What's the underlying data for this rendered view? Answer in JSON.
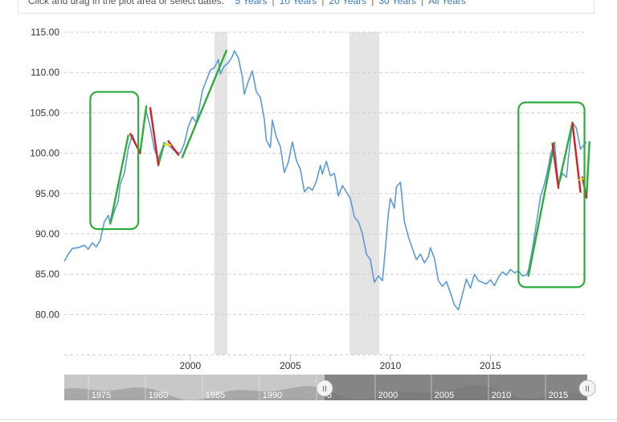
{
  "toolbar": {
    "hint": "Click and drag in the plot area or select dates:",
    "ranges": [
      "5 Years",
      "10 Years",
      "20 Years",
      "30 Years",
      "All Years"
    ]
  },
  "colors": {
    "line": "#5b9bd5",
    "grid": "#cfcfcf",
    "recession": "#e4e4e4",
    "up_trend": "#2eac3e",
    "down_trend": "#d42020",
    "flat_trend": "#d8e02a",
    "box": "#2eac3e",
    "navigator_bg": "#c8c8c8",
    "navigator_fill": "#a8a8a8",
    "navigator_selected": "#6f6f6f"
  },
  "chart_data": {
    "type": "line",
    "title": "",
    "xlabel": "",
    "ylabel": "",
    "yticks": [
      "115.00",
      "110.00",
      "105.00",
      "100.00",
      "95.00",
      "90.00",
      "85.00",
      "80.00"
    ],
    "xticks": [
      "2000",
      "2005",
      "2010",
      "2015"
    ],
    "ylim": [
      75,
      115
    ],
    "xlim": [
      1993.7,
      2019.8
    ],
    "grid": true,
    "recession_bands": [
      [
        2001.2,
        2001.85
      ],
      [
        2007.95,
        2009.45
      ]
    ],
    "series": [
      {
        "name": "",
        "points": [
          [
            1993.7,
            86.6
          ],
          [
            1993.9,
            87.5
          ],
          [
            1994.1,
            88.2
          ],
          [
            1994.4,
            88.3
          ],
          [
            1994.7,
            88.6
          ],
          [
            1994.9,
            88.1
          ],
          [
            1995.1,
            88.9
          ],
          [
            1995.3,
            88.4
          ],
          [
            1995.5,
            89.2
          ],
          [
            1995.7,
            91.5
          ],
          [
            1995.9,
            92.3
          ],
          [
            1996.0,
            91.2
          ],
          [
            1996.2,
            92.8
          ],
          [
            1996.4,
            94.1
          ],
          [
            1996.5,
            96.2
          ],
          [
            1996.7,
            97.5
          ],
          [
            1996.9,
            100.6
          ],
          [
            1997.1,
            102.3
          ],
          [
            1997.3,
            101.0
          ],
          [
            1997.5,
            100.2
          ],
          [
            1997.7,
            104.2
          ],
          [
            1997.8,
            105.2
          ],
          [
            1998.0,
            103.2
          ],
          [
            1998.2,
            100.5
          ],
          [
            1998.4,
            99.3
          ],
          [
            1998.6,
            100.6
          ],
          [
            1998.8,
            101.2
          ],
          [
            1999.0,
            100.8
          ],
          [
            1999.2,
            100.3
          ],
          [
            1999.5,
            100.0
          ],
          [
            1999.7,
            101.2
          ],
          [
            1999.9,
            103.3
          ],
          [
            2000.1,
            104.5
          ],
          [
            2000.3,
            103.8
          ],
          [
            2000.5,
            106.3
          ],
          [
            2000.6,
            107.7
          ],
          [
            2000.8,
            109.0
          ],
          [
            2001.0,
            110.3
          ],
          [
            2001.2,
            110.6
          ],
          [
            2001.4,
            111.6
          ],
          [
            2001.5,
            109.8
          ],
          [
            2001.7,
            110.8
          ],
          [
            2001.9,
            111.2
          ],
          [
            2002.1,
            112.0
          ],
          [
            2002.2,
            112.7
          ],
          [
            2002.4,
            111.8
          ],
          [
            2002.6,
            109.5
          ],
          [
            2002.7,
            107.3
          ],
          [
            2002.9,
            108.9
          ],
          [
            2003.1,
            110.2
          ],
          [
            2003.3,
            107.6
          ],
          [
            2003.5,
            106.9
          ],
          [
            2003.7,
            104.2
          ],
          [
            2003.8,
            101.6
          ],
          [
            2004.0,
            100.7
          ],
          [
            2004.1,
            104.1
          ],
          [
            2004.3,
            102.0
          ],
          [
            2004.5,
            100.8
          ],
          [
            2004.7,
            97.6
          ],
          [
            2004.9,
            98.9
          ],
          [
            2005.1,
            101.4
          ],
          [
            2005.3,
            99.1
          ],
          [
            2005.5,
            98.0
          ],
          [
            2005.7,
            95.2
          ],
          [
            2005.9,
            95.8
          ],
          [
            2006.1,
            95.4
          ],
          [
            2006.3,
            96.5
          ],
          [
            2006.5,
            98.5
          ],
          [
            2006.6,
            97.4
          ],
          [
            2006.8,
            99.0
          ],
          [
            2007.0,
            97.2
          ],
          [
            2007.2,
            97.5
          ],
          [
            2007.4,
            94.7
          ],
          [
            2007.6,
            96.0
          ],
          [
            2007.8,
            95.2
          ],
          [
            2008.0,
            94.4
          ],
          [
            2008.2,
            92.1
          ],
          [
            2008.4,
            91.5
          ],
          [
            2008.6,
            90.0
          ],
          [
            2008.8,
            87.5
          ],
          [
            2009.0,
            86.8
          ],
          [
            2009.2,
            84.0
          ],
          [
            2009.4,
            84.8
          ],
          [
            2009.6,
            84.2
          ],
          [
            2009.7,
            86.8
          ],
          [
            2009.9,
            92.5
          ],
          [
            2010.0,
            94.4
          ],
          [
            2010.2,
            93.2
          ],
          [
            2010.3,
            95.8
          ],
          [
            2010.5,
            96.4
          ],
          [
            2010.7,
            91.5
          ],
          [
            2010.9,
            89.6
          ],
          [
            2011.1,
            88.2
          ],
          [
            2011.3,
            86.8
          ],
          [
            2011.5,
            87.5
          ],
          [
            2011.7,
            86.4
          ],
          [
            2011.9,
            87.2
          ],
          [
            2012.0,
            88.3
          ],
          [
            2012.2,
            87.0
          ],
          [
            2012.4,
            84.2
          ],
          [
            2012.6,
            83.5
          ],
          [
            2012.8,
            84.1
          ],
          [
            2013.0,
            82.7
          ],
          [
            2013.2,
            81.2
          ],
          [
            2013.4,
            80.6
          ],
          [
            2013.6,
            82.5
          ],
          [
            2013.8,
            84.4
          ],
          [
            2014.0,
            83.3
          ],
          [
            2014.2,
            85.0
          ],
          [
            2014.4,
            84.2
          ],
          [
            2014.6,
            84.0
          ],
          [
            2014.8,
            83.8
          ],
          [
            2015.0,
            84.3
          ],
          [
            2015.2,
            83.6
          ],
          [
            2015.4,
            84.6
          ],
          [
            2015.6,
            85.3
          ],
          [
            2015.8,
            84.9
          ],
          [
            2016.0,
            85.6
          ],
          [
            2016.2,
            85.2
          ],
          [
            2016.4,
            85.4
          ],
          [
            2016.6,
            84.8
          ],
          [
            2016.8,
            84.9
          ],
          [
            2016.9,
            85.5
          ],
          [
            2017.1,
            88.2
          ],
          [
            2017.3,
            91.3
          ],
          [
            2017.5,
            94.6
          ],
          [
            2017.7,
            96.2
          ],
          [
            2017.9,
            98.4
          ],
          [
            2018.0,
            99.8
          ],
          [
            2018.2,
            101.3
          ],
          [
            2018.4,
            96.0
          ],
          [
            2018.6,
            97.5
          ],
          [
            2018.8,
            97.0
          ],
          [
            2018.9,
            99.5
          ],
          [
            2019.1,
            103.8
          ],
          [
            2019.3,
            103.1
          ],
          [
            2019.5,
            100.5
          ],
          [
            2019.8,
            101.4
          ]
        ]
      }
    ],
    "annotations": {
      "trend_up": [
        [
          [
            1996.0,
            91.3
          ],
          [
            1996.9,
            102.2
          ]
        ],
        [
          [
            1997.5,
            100.2
          ],
          [
            1997.8,
            105.8
          ]
        ],
        [
          [
            1998.4,
            98.5
          ],
          [
            1998.7,
            101.3
          ]
        ],
        [
          [
            1999.6,
            99.5
          ],
          [
            2001.8,
            112.7
          ]
        ],
        [
          [
            2016.9,
            84.8
          ],
          [
            2018.2,
            101.3
          ]
        ],
        [
          [
            2018.4,
            96.0
          ],
          [
            2019.1,
            103.8
          ]
        ],
        [
          [
            2019.8,
            94.5
          ],
          [
            2019.95,
            101.4
          ]
        ]
      ],
      "trend_down": [
        [
          [
            1997.0,
            102.4
          ],
          [
            1997.5,
            100.0
          ]
        ],
        [
          [
            1998.0,
            105.6
          ],
          [
            1998.4,
            98.6
          ]
        ],
        [
          [
            1998.9,
            101.5
          ],
          [
            1999.4,
            99.8
          ]
        ],
        [
          [
            2018.1,
            101.2
          ],
          [
            2018.4,
            95.7
          ]
        ],
        [
          [
            2019.1,
            103.7
          ],
          [
            2019.5,
            95.2
          ]
        ],
        [
          [
            2019.6,
            97.0
          ],
          [
            2019.8,
            94.5
          ]
        ]
      ],
      "trend_flat": [
        [
          [
            1998.7,
            101.1
          ],
          [
            1999.0,
            101.0
          ]
        ],
        [
          [
            2019.45,
            96.7
          ],
          [
            2019.7,
            96.9
          ]
        ]
      ],
      "boxes": [
        {
          "from": [
            1995.0,
            90.6
          ],
          "to": [
            1997.4,
            107.6
          ]
        },
        [
          [
            2016.4,
            83.4
          ],
          [
            2019.7,
            106.3
          ]
        ]
      ]
    },
    "navigator": {
      "labels": [
        "1975",
        "1980",
        "1985",
        "1990",
        "5",
        "2000",
        "2005",
        "2010",
        "2015"
      ],
      "handle_left": "II",
      "handle_right": "II",
      "selected_from": "1995",
      "selected_to": "2019"
    }
  }
}
